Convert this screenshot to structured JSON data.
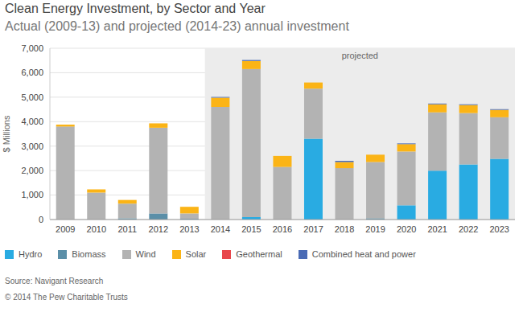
{
  "chart_data": {
    "type": "bar",
    "title": "Clean Energy Investment, by Sector and Year",
    "subtitle": "Actual (2009-13) and projected (2014-23) annual investment",
    "y_label": "$ Millions",
    "annotation": {
      "text": "projected",
      "from": "2014",
      "to": "2023"
    },
    "source": "Source: Navigant Research",
    "copyright": "© 2014 The Pew Charitable Trusts",
    "categories": [
      "2009",
      "2010",
      "2011",
      "2012",
      "2013",
      "2014",
      "2015",
      "2016",
      "2017",
      "2018",
      "2019",
      "2020",
      "2021",
      "2022",
      "2023"
    ],
    "series": [
      {
        "name": "Hydro",
        "color": "#29abe2",
        "values": [
          0,
          0,
          0,
          0,
          0,
          0,
          100,
          0,
          3300,
          0,
          0,
          580,
          2000,
          2250,
          2480
        ]
      },
      {
        "name": "Biomass",
        "color": "#5b8fa8",
        "values": [
          0,
          0,
          50,
          250,
          30,
          0,
          0,
          0,
          0,
          0,
          50,
          0,
          0,
          0,
          0
        ]
      },
      {
        "name": "Wind",
        "color": "#b3b3b3",
        "values": [
          3800,
          1100,
          600,
          3500,
          220,
          4600,
          6050,
          2150,
          2050,
          2100,
          2300,
          2200,
          2380,
          2100,
          1700
        ]
      },
      {
        "name": "Solar",
        "color": "#fbb416",
        "values": [
          80,
          130,
          150,
          180,
          270,
          380,
          330,
          450,
          250,
          250,
          300,
          300,
          330,
          330,
          300
        ]
      },
      {
        "name": "Geothermal",
        "color": "#e8474c",
        "values": [
          0,
          0,
          0,
          0,
          0,
          0,
          0,
          0,
          0,
          0,
          0,
          0,
          0,
          0,
          0
        ]
      },
      {
        "name": "Combined heat and power",
        "color": "#4a6bb5",
        "values": [
          0,
          0,
          0,
          0,
          0,
          30,
          40,
          0,
          0,
          50,
          0,
          30,
          30,
          30,
          30
        ]
      }
    ],
    "ylim": [
      0,
      7000
    ],
    "yticks": [
      0,
      {
        "value": 1000,
        "label": "1,000"
      },
      {
        "value": 2000,
        "label": "2,000"
      },
      {
        "value": 3000,
        "label": "3,000"
      },
      {
        "value": 4000,
        "label": "4,000"
      },
      {
        "value": 5000,
        "label": "5,000"
      },
      {
        "value": 6000,
        "label": "6,000"
      },
      {
        "value": 7000,
        "label": "7,000"
      }
    ],
    "grid": true,
    "stacked": true,
    "legend": "bottom"
  }
}
